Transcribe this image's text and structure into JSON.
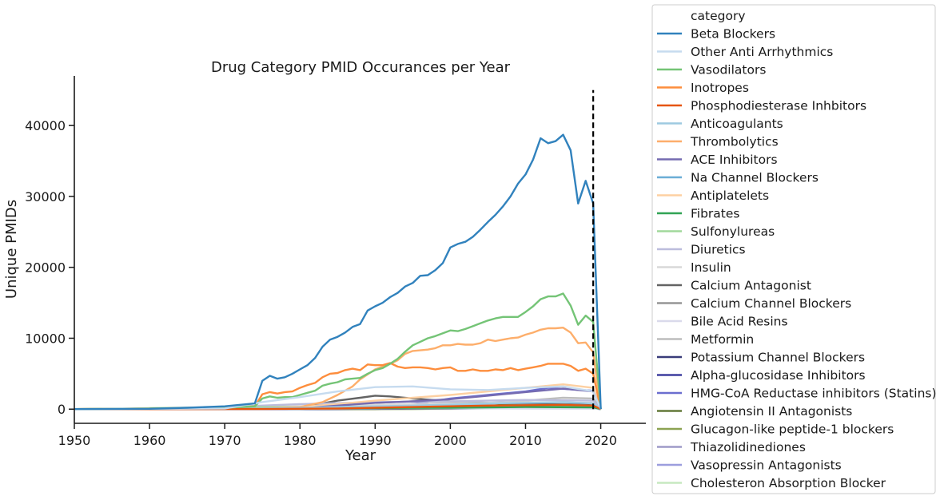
{
  "chart_data": {
    "type": "line",
    "title": "Drug Category PMID Occurances per Year",
    "xlabel": "Year",
    "ylabel": "Unique PMIDs",
    "xlim": [
      1950,
      2026
    ],
    "ylim": [
      -2000,
      47000
    ],
    "xticks": [
      "1950",
      "1960",
      "1970",
      "1980",
      "1990",
      "2000",
      "2010",
      "2020"
    ],
    "yticks": [
      "0",
      "10000",
      "20000",
      "30000",
      "40000"
    ],
    "grid": false,
    "legend_placement": "outside-right",
    "legend_title": "category",
    "vline": {
      "x": 2019,
      "y": [
        0,
        45000
      ],
      "style": "dashed",
      "color": "#000000"
    },
    "series": [
      {
        "name": "Beta Blockers",
        "color": "#3182bd",
        "x": [
          1950,
          1960,
          1965,
          1970,
          1974,
          1975,
          1976,
          1977,
          1978,
          1979,
          1980,
          1981,
          1982,
          1983,
          1984,
          1985,
          1986,
          1987,
          1988,
          1989,
          1990,
          1991,
          1992,
          1993,
          1994,
          1995,
          1996,
          1997,
          1998,
          1999,
          2000,
          2001,
          2002,
          2003,
          2004,
          2005,
          2006,
          2007,
          2008,
          2009,
          2010,
          2011,
          2012,
          2013,
          2014,
          2015,
          2016,
          2017,
          2018,
          2019,
          2020
        ],
        "y": [
          0,
          50,
          200,
          400,
          800,
          4000,
          4700,
          4300,
          4500,
          5000,
          5600,
          6200,
          7200,
          8800,
          9800,
          10200,
          10800,
          11600,
          12000,
          13900,
          14500,
          15000,
          15800,
          16400,
          17300,
          17800,
          18800,
          18900,
          19600,
          20600,
          22800,
          23300,
          23600,
          24300,
          25300,
          26400,
          27400,
          28600,
          30000,
          31800,
          33100,
          35200,
          38200,
          37500,
          37800,
          38700,
          36500,
          29000,
          32200,
          29000,
          0
        ]
      },
      {
        "name": "Other Anti Arrhythmics",
        "color": "#c6dbef",
        "x": [
          1950,
          1970,
          1975,
          1980,
          1985,
          1990,
          1995,
          2000,
          2005,
          2010,
          2015,
          2019,
          2020
        ],
        "y": [
          0,
          100,
          1000,
          1700,
          2500,
          3100,
          3200,
          2800,
          2700,
          3000,
          3200,
          2500,
          0
        ]
      },
      {
        "name": "Vasodilators",
        "color": "#74c476",
        "x": [
          1950,
          1970,
          1974,
          1975,
          1976,
          1977,
          1978,
          1979,
          1980,
          1981,
          1982,
          1983,
          1984,
          1985,
          1986,
          1987,
          1988,
          1989,
          1990,
          1991,
          1992,
          1993,
          1994,
          1995,
          1996,
          1997,
          1998,
          1999,
          2000,
          2001,
          2002,
          2003,
          2004,
          2005,
          2006,
          2007,
          2008,
          2009,
          2010,
          2011,
          2012,
          2013,
          2014,
          2015,
          2016,
          2017,
          2018,
          2019,
          2020
        ],
        "y": [
          0,
          200,
          400,
          1500,
          1800,
          1600,
          1700,
          1700,
          2000,
          2300,
          2600,
          3300,
          3600,
          3800,
          4200,
          4300,
          4400,
          5000,
          5500,
          5800,
          6400,
          7100,
          8100,
          9000,
          9500,
          10000,
          10300,
          10700,
          11100,
          11000,
          11300,
          11700,
          12100,
          12500,
          12800,
          13000,
          13000,
          13000,
          13700,
          14500,
          15500,
          15900,
          15900,
          16300,
          14600,
          11900,
          13200,
          12300,
          0
        ]
      },
      {
        "name": "Inotropes",
        "color": "#fd8d3c",
        "x": [
          1950,
          1970,
          1974,
          1975,
          1976,
          1977,
          1978,
          1979,
          1980,
          1981,
          1982,
          1983,
          1984,
          1985,
          1986,
          1987,
          1988,
          1989,
          1990,
          1991,
          1992,
          1993,
          1994,
          1995,
          1996,
          1997,
          1998,
          1999,
          2000,
          2001,
          2002,
          2003,
          2004,
          2005,
          2006,
          2007,
          2008,
          2009,
          2010,
          2011,
          2012,
          2013,
          2014,
          2015,
          2016,
          2017,
          2018,
          2019,
          2020
        ],
        "y": [
          0,
          200,
          400,
          2100,
          2400,
          2200,
          2400,
          2500,
          3000,
          3400,
          3700,
          4500,
          5000,
          5100,
          5500,
          5700,
          5500,
          6300,
          6200,
          6200,
          6500,
          6000,
          5800,
          5900,
          5900,
          5800,
          5600,
          5800,
          5900,
          5400,
          5400,
          5600,
          5400,
          5400,
          5600,
          5500,
          5800,
          5500,
          5700,
          5900,
          6100,
          6400,
          6400,
          6400,
          6100,
          5400,
          5700,
          5000,
          0
        ]
      },
      {
        "name": "Phosphodiesterase Inhbitors",
        "color": "#e6550d",
        "x": [
          1950,
          1975,
          1985,
          1995,
          2005,
          2015,
          2019,
          2020
        ],
        "y": [
          0,
          20,
          100,
          300,
          500,
          600,
          500,
          0
        ]
      },
      {
        "name": "Anticoagulants",
        "color": "#9ecae1",
        "x": [
          1950,
          1975,
          1985,
          1995,
          2005,
          2015,
          2019,
          2020
        ],
        "y": [
          0,
          100,
          300,
          500,
          800,
          1000,
          800,
          0
        ]
      },
      {
        "name": "Thrombolytics",
        "color": "#fdae6b",
        "x": [
          1950,
          1975,
          1980,
          1983,
          1985,
          1987,
          1988,
          1989,
          1990,
          1991,
          1992,
          1993,
          1994,
          1995,
          1996,
          1997,
          1998,
          1999,
          2000,
          2001,
          2002,
          2003,
          2004,
          2005,
          2006,
          2007,
          2008,
          2009,
          2010,
          2011,
          2012,
          2013,
          2014,
          2015,
          2016,
          2017,
          2018,
          2019,
          2020
        ],
        "y": [
          0,
          100,
          300,
          1000,
          2000,
          3200,
          4200,
          4900,
          5600,
          6000,
          6400,
          6900,
          7800,
          8200,
          8300,
          8400,
          8600,
          9000,
          9000,
          9200,
          9100,
          9100,
          9300,
          9800,
          9600,
          9800,
          10000,
          10100,
          10500,
          10800,
          11200,
          11400,
          11400,
          11500,
          10800,
          9300,
          9400,
          8000,
          0
        ]
      },
      {
        "name": "ACE Inhibitors",
        "color": "#756bb1",
        "x": [
          1950,
          1978,
          1980,
          1985,
          1990,
          1995,
          2000,
          2005,
          2010,
          2015,
          2019,
          2020
        ],
        "y": [
          0,
          0,
          100,
          500,
          900,
          1100,
          1400,
          1900,
          2400,
          2900,
          2500,
          0
        ]
      },
      {
        "name": "Na Channel Blockers",
        "color": "#6baed6",
        "x": [
          1950,
          1975,
          1985,
          1995,
          2005,
          2015,
          2019,
          2020
        ],
        "y": [
          0,
          50,
          200,
          400,
          500,
          600,
          500,
          0
        ]
      },
      {
        "name": "Antiplatelets",
        "color": "#fdd0a2",
        "x": [
          1950,
          1975,
          1980,
          1985,
          1990,
          1995,
          2000,
          2005,
          2010,
          2015,
          2019,
          2020
        ],
        "y": [
          0,
          100,
          300,
          700,
          1200,
          1600,
          2000,
          2500,
          3000,
          3500,
          3000,
          0
        ]
      },
      {
        "name": "Fibrates",
        "color": "#31a354",
        "x": [
          1950,
          1970,
          1980,
          1990,
          2000,
          2010,
          2019,
          2020
        ],
        "y": [
          0,
          20,
          80,
          150,
          200,
          300,
          250,
          0
        ]
      },
      {
        "name": "Sulfonylureas",
        "color": "#a1d99b",
        "x": [
          1950,
          1957,
          1960,
          1970,
          1980,
          1990,
          2000,
          2010,
          2019,
          2020
        ],
        "y": [
          0,
          50,
          150,
          250,
          300,
          350,
          400,
          500,
          400,
          0
        ]
      },
      {
        "name": "Diuretics",
        "color": "#bcbddc",
        "x": [
          1950,
          1960,
          1970,
          1980,
          1990,
          2000,
          2010,
          2019,
          2020
        ],
        "y": [
          0,
          100,
          300,
          700,
          1000,
          1100,
          1300,
          1200,
          0
        ]
      },
      {
        "name": "Insulin",
        "color": "#d9d9d9",
        "x": [
          1950,
          1960,
          1970,
          1980,
          1990,
          2000,
          2010,
          2019,
          2020
        ],
        "y": [
          0,
          100,
          200,
          400,
          600,
          800,
          1000,
          900,
          0
        ]
      },
      {
        "name": "Calcium Antagonist",
        "color": "#636363",
        "x": [
          1950,
          1978,
          1980,
          1982,
          1985,
          1988,
          1990,
          1992,
          1995,
          2000,
          2005,
          2010,
          2015,
          2019,
          2020
        ],
        "y": [
          0,
          0,
          200,
          600,
          1200,
          1600,
          1900,
          1800,
          1500,
          1100,
          900,
          800,
          700,
          600,
          0
        ]
      },
      {
        "name": "Calcium Channel Blockers",
        "color": "#969696",
        "x": [
          1950,
          1980,
          1985,
          1990,
          1995,
          2000,
          2005,
          2010,
          2015,
          2019,
          2020
        ],
        "y": [
          0,
          100,
          500,
          900,
          1100,
          1000,
          900,
          900,
          800,
          700,
          0
        ]
      },
      {
        "name": "Bile Acid Resins",
        "color": "#dadaeb",
        "x": [
          1950,
          1970,
          1980,
          1990,
          2000,
          2010,
          2019,
          2020
        ],
        "y": [
          0,
          30,
          100,
          150,
          120,
          80,
          60,
          0
        ]
      },
      {
        "name": "Metformin",
        "color": "#bdbdbd",
        "x": [
          1950,
          1980,
          1990,
          2000,
          2005,
          2010,
          2015,
          2019,
          2020
        ],
        "y": [
          0,
          30,
          100,
          300,
          700,
          1200,
          1600,
          1500,
          0
        ]
      },
      {
        "name": "Potassium Channel Blockers",
        "color": "#393b79",
        "x": [
          1950,
          1980,
          1990,
          2000,
          2010,
          2019,
          2020
        ],
        "y": [
          0,
          20,
          60,
          100,
          150,
          120,
          0
        ]
      },
      {
        "name": "Alpha-glucosidase Inhibitors",
        "color": "#3f3f9f",
        "x": [
          1950,
          1985,
          1990,
          2000,
          2010,
          2019,
          2020
        ],
        "y": [
          0,
          20,
          80,
          150,
          200,
          150,
          0
        ]
      },
      {
        "name": "HMG-CoA Reductase inhibitors (Statins)",
        "color": "#6b6ecf",
        "x": [
          1950,
          1985,
          1990,
          1995,
          2000,
          2005,
          2010,
          2013,
          2016,
          2019,
          2020
        ],
        "y": [
          0,
          50,
          300,
          700,
          1500,
          2000,
          2500,
          3000,
          2800,
          2600,
          0
        ]
      },
      {
        "name": "Angiotensin II Antagonists",
        "color": "#637939",
        "x": [
          1950,
          1990,
          1995,
          2000,
          2005,
          2010,
          2015,
          2019,
          2020
        ],
        "y": [
          0,
          20,
          200,
          500,
          700,
          800,
          700,
          600,
          0
        ]
      },
      {
        "name": "Glucagon-like peptide-1 blockers",
        "color": "#8ca252",
        "x": [
          1950,
          1995,
          2000,
          2005,
          2010,
          2015,
          2019,
          2020
        ],
        "y": [
          0,
          20,
          80,
          200,
          500,
          800,
          700,
          0
        ]
      },
      {
        "name": "Thiazolidinediones",
        "color": "#9e9ac8",
        "x": [
          1950,
          1990,
          1995,
          2000,
          2005,
          2008,
          2012,
          2016,
          2019,
          2020
        ],
        "y": [
          0,
          10,
          100,
          500,
          900,
          1000,
          900,
          700,
          600,
          0
        ]
      },
      {
        "name": "Vasopressin Antagonists",
        "color": "#9c9ede",
        "x": [
          1950,
          1990,
          2000,
          2010,
          2019,
          2020
        ],
        "y": [
          0,
          20,
          60,
          150,
          120,
          0
        ]
      },
      {
        "name": "Cholesteron Absorption Blocker",
        "color": "#c7e9c0",
        "x": [
          1950,
          2000,
          2005,
          2010,
          2015,
          2019,
          2020
        ],
        "y": [
          0,
          20,
          100,
          150,
          120,
          100,
          0
        ]
      }
    ]
  }
}
